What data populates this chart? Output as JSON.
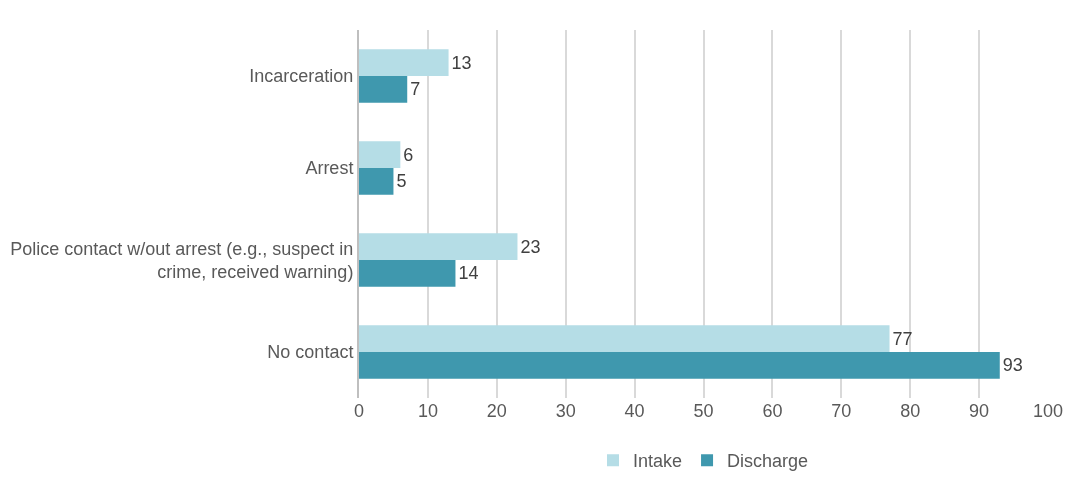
{
  "chart_data": {
    "type": "bar",
    "orientation": "horizontal",
    "categories": [
      "Incarceration",
      "Arrest",
      "Police contact w/out arrest (e.g., suspect in crime, received warning)",
      "No contact"
    ],
    "series": [
      {
        "name": "Intake",
        "color": "#b5dde6",
        "values": [
          13,
          6,
          23,
          77
        ]
      },
      {
        "name": "Discharge",
        "color": "#3f98ae",
        "values": [
          7,
          5,
          14,
          93
        ]
      }
    ],
    "xlim": [
      0,
      100
    ],
    "xticks": [
      0,
      10,
      20,
      30,
      40,
      50,
      60,
      70,
      80,
      90,
      100
    ],
    "grid": "x",
    "legend": "bottom",
    "data_labels": true
  }
}
